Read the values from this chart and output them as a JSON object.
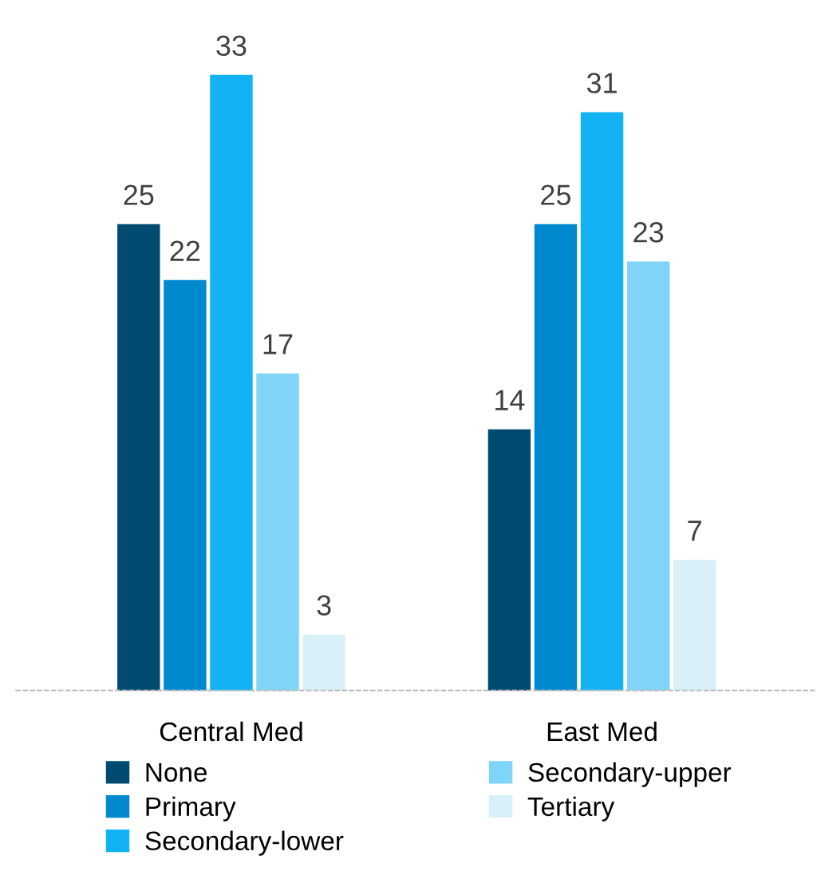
{
  "chart_data": {
    "type": "bar",
    "categories": [
      "Central Med",
      "East Med"
    ],
    "series": [
      {
        "name": "None",
        "color": "#004b6f",
        "values": [
          25,
          14
        ]
      },
      {
        "name": "Primary",
        "color": "#0089cf",
        "values": [
          22,
          25
        ]
      },
      {
        "name": "Secondary-lower",
        "color": "#12b2f4",
        "values": [
          33,
          31
        ]
      },
      {
        "name": "Secondary-upper",
        "color": "#7fd4f8",
        "values": [
          17,
          23
        ]
      },
      {
        "name": "Tertiary",
        "color": "#daf0f8",
        "values": [
          3,
          7
        ]
      }
    ],
    "data_labels": true,
    "legend": "bottom",
    "grid": false
  }
}
